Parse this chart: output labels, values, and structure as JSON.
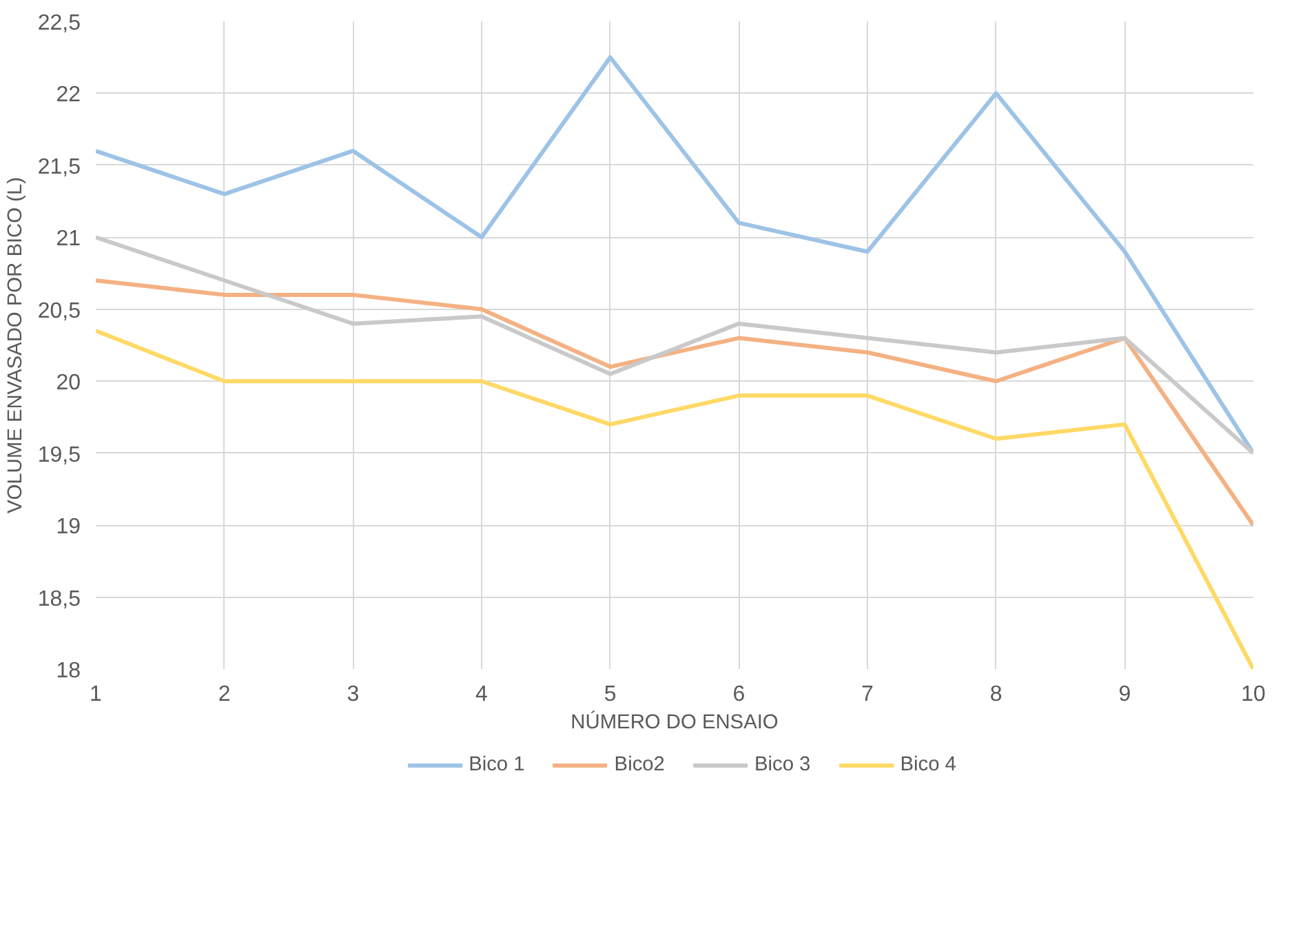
{
  "chart_data": {
    "type": "line",
    "xlabel": "NÚMERO DO ENSAIO",
    "ylabel": "VOLUME ENVASADO POR BICO (L)",
    "x": [
      1,
      2,
      3,
      4,
      5,
      6,
      7,
      8,
      9,
      10
    ],
    "series": [
      {
        "name": "Bico 1",
        "color": "#9dc3e6",
        "values": [
          21.6,
          21.3,
          21.6,
          21.0,
          22.25,
          21.1,
          20.9,
          22.0,
          20.9,
          19.5
        ]
      },
      {
        "name": "Bico2",
        "color": "#f4b183",
        "values": [
          20.7,
          20.6,
          20.6,
          20.5,
          20.1,
          20.3,
          20.2,
          20.0,
          20.3,
          19.0
        ]
      },
      {
        "name": "Bico 3",
        "color": "#c9c9c9",
        "values": [
          21.0,
          20.7,
          20.4,
          20.45,
          20.05,
          20.4,
          20.3,
          20.2,
          20.3,
          19.5
        ]
      },
      {
        "name": "Bico 4",
        "color": "#ffd966",
        "values": [
          20.35,
          20.0,
          20.0,
          20.0,
          19.7,
          19.9,
          19.9,
          19.6,
          19.7,
          18.0
        ]
      }
    ],
    "xlim": [
      1,
      10
    ],
    "xticks": [
      1,
      2,
      3,
      4,
      5,
      6,
      7,
      8,
      9,
      10
    ],
    "ylim": [
      18,
      22.5
    ],
    "yticks": [
      18,
      {
        "value": 18.5,
        "label": "18,5"
      },
      19,
      {
        "value": 19.5,
        "label": "19,5"
      },
      20,
      {
        "value": 20.5,
        "label": "20,5"
      },
      21,
      {
        "value": 21.5,
        "label": "21,5"
      },
      22,
      {
        "value": 22.5,
        "label": "22,5"
      }
    ],
    "grid": true,
    "legend": "bottom",
    "marker": "none",
    "line_style": "solid"
  }
}
